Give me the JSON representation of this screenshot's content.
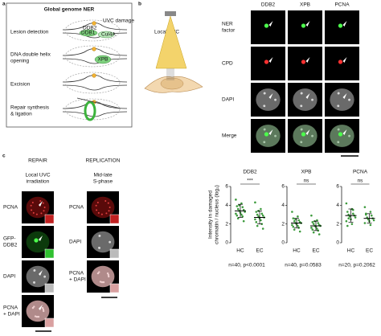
{
  "panel_a": {
    "letter": "a",
    "title": "Global genome NER",
    "steps": [
      [
        "Lesion detection"
      ],
      [
        "DNA double helix",
        "opening"
      ],
      [
        "Excision"
      ],
      [
        "Repair synthesis",
        "& ligation"
      ]
    ],
    "labels": {
      "damage": "UVC damage",
      "ddb2": "DDB2",
      "ddb1": "DDB1",
      "cul4a": "Cul4A",
      "xpb": "XPB"
    }
  },
  "panel_b": {
    "letter": "b",
    "illustration": "Local UVC",
    "columns": [
      "DDB2",
      "XPB",
      "PCNA"
    ],
    "rows": [
      [
        "NER",
        "factor"
      ],
      [
        "CPD"
      ],
      [
        "DAPI"
      ],
      [
        "Merge"
      ]
    ]
  },
  "panel_c": {
    "letter": "c",
    "repair": {
      "heading": "REPAIR",
      "condition": [
        "Local UVC",
        "irradiation"
      ],
      "rows": [
        [
          "PCNA"
        ],
        [
          "GFP-",
          "DDB2"
        ],
        [
          "DAPI"
        ],
        [
          "PCNA",
          "+ DAPI"
        ]
      ]
    },
    "replication": {
      "heading": "REPLICATION",
      "condition": [
        "Mid-late",
        "S-phase"
      ],
      "rows": [
        [
          "PCNA"
        ],
        [
          "DAPI"
        ],
        [
          "PCNA",
          "+ DAPI"
        ]
      ]
    }
  },
  "chart_data": [
    {
      "type": "strip",
      "title": "DDB2",
      "ylabel": [
        "Intensity in damaged",
        "chromatin / nucleus (log₂)"
      ],
      "ylim": [
        0,
        6
      ],
      "yticks": [
        0,
        2,
        4,
        6
      ],
      "color": "#3c9a3c",
      "groups": [
        {
          "name": "HC",
          "values": [
            4.6,
            4.2,
            3.9,
            3.8,
            3.6,
            3.5,
            3.4,
            3.3,
            3.2,
            3.1,
            3.0,
            2.9,
            2.8,
            2.6,
            2.3,
            4.0
          ],
          "mean": 3.4,
          "sd": 0.7
        },
        {
          "name": "EC",
          "values": [
            4.3,
            3.6,
            3.3,
            3.1,
            3.0,
            2.9,
            2.8,
            2.7,
            2.6,
            2.5,
            2.4,
            2.2,
            2.0,
            1.8,
            1.5,
            3.4
          ],
          "mean": 2.7,
          "sd": 0.7
        }
      ],
      "significance": "***",
      "note": "n=40, p<0.0001"
    },
    {
      "type": "strip",
      "title": "XPB",
      "ylim": [
        0,
        6
      ],
      "yticks": [
        0,
        2,
        4,
        6
      ],
      "color": "#3c9a3c",
      "groups": [
        {
          "name": "HC",
          "values": [
            3.3,
            2.8,
            2.6,
            2.4,
            2.3,
            2.2,
            2.1,
            2.1,
            2.0,
            1.9,
            1.8,
            1.7,
            1.6,
            1.4,
            1.2,
            2.5
          ],
          "mean": 2.1,
          "sd": 0.5
        },
        {
          "name": "EC",
          "values": [
            2.9,
            2.4,
            2.2,
            2.1,
            2.0,
            1.9,
            1.8,
            1.8,
            1.7,
            1.6,
            1.5,
            1.4,
            1.3,
            1.1,
            0.9,
            2.3
          ],
          "mean": 1.8,
          "sd": 0.5
        }
      ],
      "significance": "ns",
      "note": "n=40, p=0.0583"
    },
    {
      "type": "strip",
      "title": "PCNA",
      "ylim": [
        0,
        6
      ],
      "yticks": [
        0,
        2,
        4,
        6
      ],
      "color": "#3c9a3c",
      "groups": [
        {
          "name": "HC",
          "values": [
            4.2,
            3.6,
            3.3,
            3.1,
            3.0,
            2.9,
            2.8,
            2.7,
            2.5,
            2.3,
            2.0,
            1.8,
            3.5,
            2.6
          ],
          "mean": 2.9,
          "sd": 0.7
        },
        {
          "name": "EC",
          "values": [
            3.8,
            3.3,
            3.0,
            2.9,
            2.7,
            2.6,
            2.5,
            2.4,
            2.3,
            2.1,
            1.9,
            3.1
          ],
          "mean": 2.6,
          "sd": 0.5
        }
      ],
      "significance": "ns",
      "note": "n=20, p=0.2062"
    }
  ]
}
